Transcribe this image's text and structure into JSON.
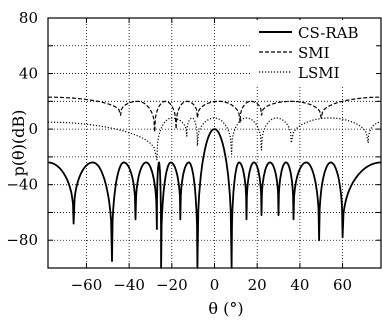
{
  "chart_data": {
    "type": "line",
    "title": "",
    "xlabel": "θ (°)",
    "ylabel": "p(θ)(dB)",
    "xlim": [
      -78,
      78
    ],
    "ylim": [
      -100,
      80
    ],
    "xticks": [
      -60,
      -40,
      -20,
      0,
      20,
      40,
      60
    ],
    "yticks": [
      -80,
      -40,
      0,
      40,
      80
    ],
    "grid": true,
    "grid_style": "dotted",
    "legend_position": "top-right",
    "series": [
      {
        "name": "CS-RAB",
        "style": "solid",
        "main_beam_peak_db": 0,
        "main_beam_angle_deg": 0,
        "main_beam_nulls_deg": [
          -8,
          8
        ],
        "sidelobe_peak_db": -24,
        "null_angles_deg": [
          -66,
          -48,
          -37,
          -27,
          -25,
          -16,
          -8,
          8,
          15,
          22,
          30,
          37,
          49,
          60
        ],
        "null_depths_db": [
          -68,
          -95,
          -65,
          -72,
          -100,
          -65,
          -100,
          -100,
          -65,
          -62,
          -62,
          -65,
          -80,
          -78
        ]
      },
      {
        "name": "SMI",
        "style": "dashed",
        "edge_level_db": 23,
        "sidelobe_level_db": 20,
        "null_angles_deg": [
          -44,
          -28,
          -18,
          -8,
          12,
          22,
          50
        ],
        "null_depths_db": [
          10,
          -2,
          0,
          8,
          5,
          10,
          8
        ]
      },
      {
        "name": "LSMI",
        "style": "dotted",
        "edge_level_db": 5,
        "sidelobe_level_db": 8,
        "null_angles_deg": [
          -27,
          -13,
          -8,
          8,
          22,
          36,
          72
        ],
        "null_depths_db": [
          -22,
          -5,
          -12,
          -18,
          -15,
          -10,
          -10
        ]
      }
    ]
  }
}
